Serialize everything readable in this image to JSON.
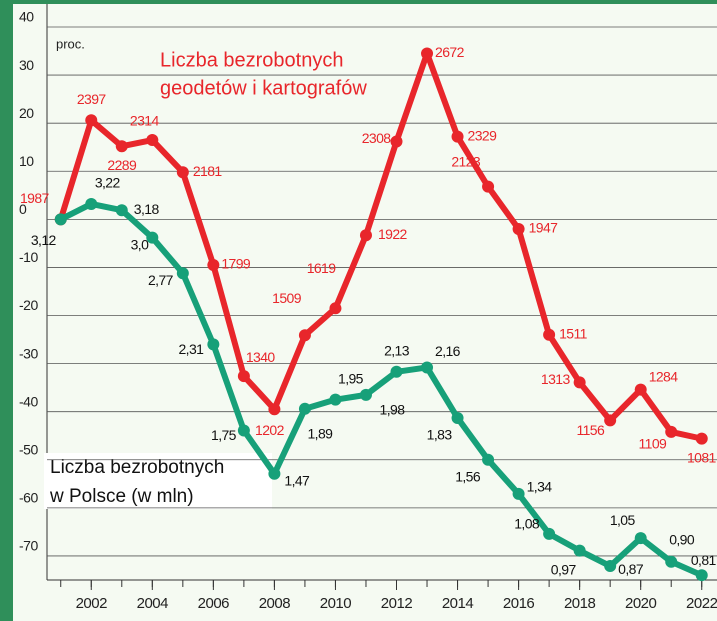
{
  "chart_data": {
    "type": "line",
    "ylabel": "proc.",
    "x": [
      2001,
      2002,
      2003,
      2004,
      2005,
      2006,
      2007,
      2008,
      2009,
      2010,
      2011,
      2012,
      2013,
      2014,
      2015,
      2016,
      2017,
      2018,
      2019,
      2020,
      2021,
      2022
    ],
    "xlim": [
      2000.55,
      2022.5
    ],
    "xticks": [
      2002,
      2004,
      2006,
      2008,
      2010,
      2012,
      2014,
      2016,
      2018,
      2020,
      2022
    ],
    "ylim": [
      -75,
      40
    ],
    "yticks": [
      40,
      30,
      20,
      10,
      0,
      -10,
      -20,
      -30,
      -40,
      -50,
      -60,
      -70
    ],
    "grid": true,
    "series": [
      {
        "name": [
          "Liczba bezrobotnych",
          "geodetów i kartografów"
        ],
        "color": "#e8262b",
        "values": [
          0,
          20.6,
          15.2,
          16.5,
          9.8,
          -9.5,
          -32.6,
          -39.5,
          -24.1,
          -18.5,
          -3.3,
          16.2,
          34.5,
          17.2,
          6.8,
          -2.0,
          -24.0,
          -33.9,
          -41.8,
          -35.4,
          -44.2,
          -45.6
        ],
        "labels": [
          "1987",
          "2397",
          "2289",
          "2314",
          "2181",
          "1799",
          "1340",
          "1202",
          "1509",
          "1619",
          "1922",
          "2308",
          "2672",
          "2329",
          "2123",
          "1947",
          "1511",
          "1313",
          "1156",
          "1284",
          "1109",
          "1081"
        ],
        "label_color": "#e8262b"
      },
      {
        "name": [
          "Liczba bezrobotnych",
          "w Polsce (w mln)"
        ],
        "color": "#17a079",
        "values": [
          0,
          3.2,
          1.9,
          -3.8,
          -11.2,
          -26.0,
          -43.9,
          -52.9,
          -39.4,
          -37.5,
          -36.5,
          -31.7,
          -30.8,
          -41.3,
          -50.0,
          -57.1,
          -65.4,
          -68.9,
          -72.1,
          -66.3,
          -71.2,
          -74.0
        ],
        "labels": [
          "3,12",
          "3,22",
          "3,18",
          "3,0",
          "2,77",
          "2,31",
          "1,75",
          "1,47",
          "1,89",
          "1,95",
          "1,98",
          "2,13",
          "2,16",
          "1,83",
          "1,56",
          "1,34",
          "1,08",
          "0,97",
          "0,87",
          "1,05",
          "0,90",
          "0,81"
        ],
        "label_color": "#111111"
      }
    ]
  }
}
